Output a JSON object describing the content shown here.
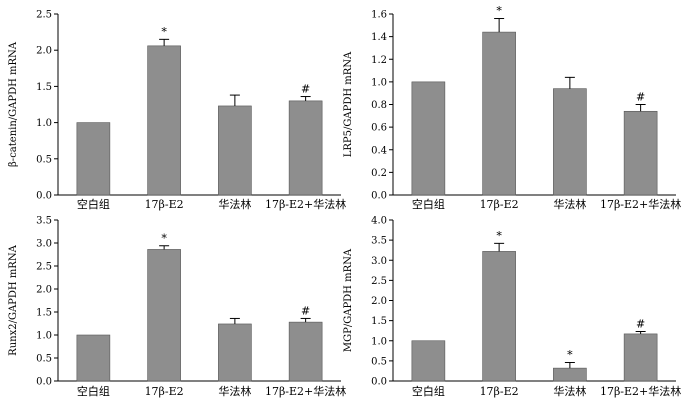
{
  "colors": {
    "bar": "#8e8e8e",
    "axis": "#000000"
  },
  "chart_data": [
    {
      "type": "bar",
      "ylabel": "β-catenin/GAPDH mRNA",
      "categories": [
        "空白组",
        "17β-E2",
        "华法林",
        "17β-E2+华法林"
      ],
      "values": [
        1.0,
        2.06,
        1.23,
        1.3
      ],
      "errors": [
        0,
        0.09,
        0.15,
        0.06
      ],
      "markers": [
        "",
        "*",
        "",
        "#"
      ],
      "ylim": [
        0,
        2.5
      ],
      "yticks": [
        "0.0",
        "0.5",
        "1.0",
        "1.5",
        "2.0",
        "2.5"
      ],
      "grid": false,
      "legend": "none"
    },
    {
      "type": "bar",
      "ylabel": "LRP5/GAPDH mRNA",
      "categories": [
        "空白组",
        "17β-E2",
        "华法林",
        "17β-E2+华法林"
      ],
      "values": [
        1.0,
        1.44,
        0.94,
        0.74
      ],
      "errors": [
        0,
        0.12,
        0.1,
        0.06
      ],
      "markers": [
        "",
        "*",
        "",
        "#"
      ],
      "ylim": [
        0,
        1.6
      ],
      "yticks": [
        "0.0",
        "0.2",
        "0.4",
        "0.6",
        "0.8",
        "1.0",
        "1.2",
        "1.4",
        "1.6"
      ],
      "grid": false,
      "legend": "none"
    },
    {
      "type": "bar",
      "ylabel": "Runx2/GAPDH mRNA",
      "categories": [
        "空白组",
        "17β-E2",
        "华法林",
        "17β-E2+华法林"
      ],
      "values": [
        1.0,
        2.86,
        1.24,
        1.28
      ],
      "errors": [
        0,
        0.08,
        0.12,
        0.08
      ],
      "markers": [
        "",
        "*",
        "",
        "#"
      ],
      "ylim": [
        0,
        3.5
      ],
      "yticks": [
        "0.0",
        "0.5",
        "1.0",
        "1.5",
        "2.0",
        "2.5",
        "3.0",
        "3.5"
      ],
      "grid": false,
      "legend": "none"
    },
    {
      "type": "bar",
      "ylabel": "MGP/GAPDH mRNA",
      "categories": [
        "空白组",
        "17β-E2",
        "华法林",
        "17β-E2+华法林"
      ],
      "values": [
        1.0,
        3.22,
        0.32,
        1.17
      ],
      "errors": [
        0,
        0.2,
        0.14,
        0.06
      ],
      "markers": [
        "",
        "*",
        "*",
        "#"
      ],
      "ylim": [
        0,
        4.0
      ],
      "yticks": [
        "0.0",
        "0.5",
        "1.0",
        "1.5",
        "2.0",
        "2.5",
        "3.0",
        "3.5",
        "4.0"
      ],
      "grid": false,
      "legend": "none"
    }
  ]
}
